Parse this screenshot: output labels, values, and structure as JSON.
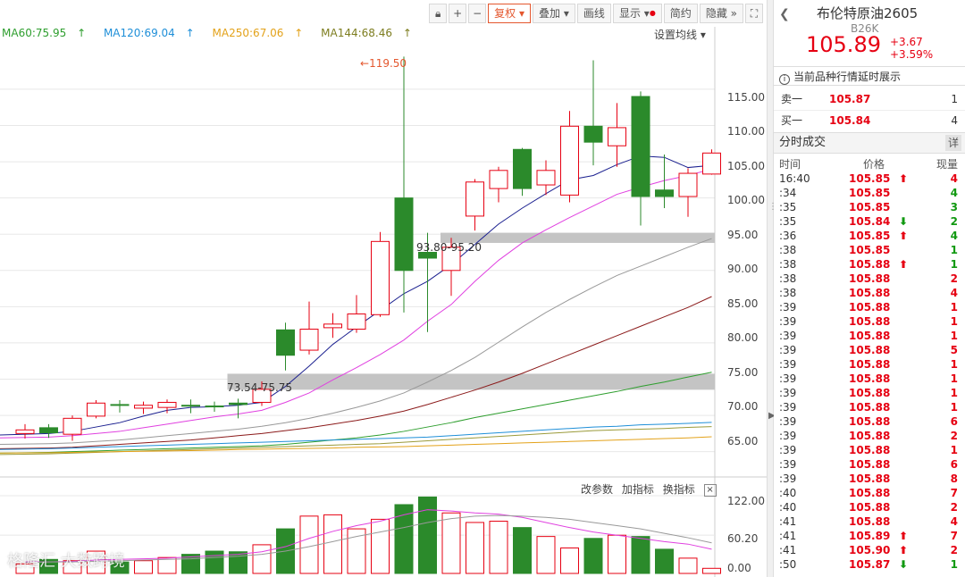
{
  "toolbar": {
    "lock_icon": "lock-icon",
    "zoom_in": "+",
    "zoom_out": "−",
    "fuquan": "复权",
    "diejia": "叠加",
    "huaxian": "画线",
    "xianshi": "显示",
    "jianyue": "简约",
    "yincang": "隐藏",
    "fullscreen_icon": "fullscreen-icon"
  },
  "ma_legend": [
    {
      "label": "MA60:75.95",
      "color": "#2e9e2e"
    },
    {
      "label": "MA120:69.04",
      "color": "#1f8fd8"
    },
    {
      "label": "MA250:67.06",
      "color": "#e3a21a"
    },
    {
      "label": "MA144:68.46",
      "color": "#9a9a3a"
    }
  ],
  "ma_setting": "设置均线 ▾",
  "annotations": {
    "high": "119.50",
    "zone1": "93.80-95.20",
    "zone2": "73.54-75.75"
  },
  "price_axis": [
    "115.00",
    "110.00",
    "105.00",
    "100.00",
    "95.00",
    "90.00",
    "85.00",
    "80.00",
    "75.00",
    "70.00",
    "65.00"
  ],
  "vol_axis": [
    "122.00",
    "60.20",
    "0.00"
  ],
  "indicator_bar": {
    "change_params": "改参数",
    "add_indicator": "加指标",
    "switch_indicator": "换指标",
    "close": "×"
  },
  "watermark": "格隆汇 大数跨境",
  "colors": {
    "up": "#e60012",
    "down": "#2b8a2b",
    "ma5": "#1a1f8f",
    "ma10": "#e040e0",
    "ma20": "#999999",
    "ma30": "#8b1a1a"
  },
  "chart_data": {
    "type": "candlestick",
    "ylim": [
      62,
      123
    ],
    "candles": [
      {
        "o": 67.5,
        "c": 68.0,
        "h": 68.8,
        "l": 66.8
      },
      {
        "o": 68.3,
        "c": 67.6,
        "h": 68.8,
        "l": 66.9
      },
      {
        "o": 67.4,
        "c": 69.6,
        "h": 70.0,
        "l": 66.5
      },
      {
        "o": 69.9,
        "c": 71.7,
        "h": 72.1,
        "l": 69.6
      },
      {
        "o": 71.5,
        "c": 71.4,
        "h": 72.1,
        "l": 70.4
      },
      {
        "o": 71.0,
        "c": 71.4,
        "h": 71.9,
        "l": 70.2
      },
      {
        "o": 71.1,
        "c": 71.8,
        "h": 72.2,
        "l": 70.3
      },
      {
        "o": 71.4,
        "c": 71.3,
        "h": 72.2,
        "l": 70.3
      },
      {
        "o": 71.3,
        "c": 71.2,
        "h": 71.9,
        "l": 70.5
      },
      {
        "o": 71.7,
        "c": 71.5,
        "h": 72.3,
        "l": 69.6
      },
      {
        "o": 71.8,
        "c": 73.6,
        "h": 74.7,
        "l": 71.3
      },
      {
        "o": 81.8,
        "c": 78.3,
        "h": 82.8,
        "l": 76.2
      },
      {
        "o": 79.0,
        "c": 81.9,
        "h": 85.7,
        "l": 78.4
      },
      {
        "o": 82.1,
        "c": 82.6,
        "h": 84.1,
        "l": 80.7
      },
      {
        "o": 81.9,
        "c": 84.0,
        "h": 86.6,
        "l": 81.4
      },
      {
        "o": 83.9,
        "c": 94.0,
        "h": 95.3,
        "l": 83.6
      },
      {
        "o": 100.0,
        "c": 90.0,
        "h": 119.5,
        "l": 84.2
      },
      {
        "o": 92.5,
        "c": 91.7,
        "h": 95.2,
        "l": 81.5
      },
      {
        "o": 90.0,
        "c": 93.2,
        "h": 94.5,
        "l": 86.5
      },
      {
        "o": 97.5,
        "c": 102.2,
        "h": 102.6,
        "l": 95.5
      },
      {
        "o": 101.3,
        "c": 103.8,
        "h": 104.3,
        "l": 99.4
      },
      {
        "o": 106.7,
        "c": 101.3,
        "h": 106.9,
        "l": 100.3
      },
      {
        "o": 101.8,
        "c": 103.8,
        "h": 105.2,
        "l": 100.4
      },
      {
        "o": 100.4,
        "c": 109.9,
        "h": 112.0,
        "l": 99.4
      },
      {
        "o": 109.9,
        "c": 107.7,
        "h": 119.0,
        "l": 104.5
      },
      {
        "o": 107.2,
        "c": 109.7,
        "h": 113.1,
        "l": 104.3
      },
      {
        "o": 114.0,
        "c": 100.2,
        "h": 114.7,
        "l": 96.2
      },
      {
        "o": 101.1,
        "c": 100.2,
        "h": 106.0,
        "l": 98.6
      },
      {
        "o": 100.2,
        "c": 103.4,
        "h": 104.1,
        "l": 97.4
      },
      {
        "o": 103.3,
        "c": 106.2,
        "h": 106.7,
        "l": 103.2
      }
    ],
    "volume_ylim": [
      0,
      122
    ],
    "volumes": [
      15,
      22,
      20,
      35,
      18,
      20,
      25,
      30,
      35,
      34,
      45,
      70,
      90,
      92,
      70,
      85,
      108,
      120,
      95,
      80,
      82,
      72,
      58,
      40,
      55,
      60,
      58,
      38,
      24,
      8
    ],
    "ma": {
      "ma5": [
        67.3,
        67.5,
        67.8,
        68.4,
        69.0,
        69.9,
        70.7,
        71.1,
        71.2,
        71.4,
        71.8,
        74.0,
        76.8,
        79.8,
        82.2,
        84.5,
        86.8,
        88.5,
        90.8,
        93.6,
        96.4,
        98.6,
        100.6,
        102.5,
        103.1,
        104.6,
        105.8,
        105.6,
        104.2,
        104.5
      ],
      "ma10": [
        66.9,
        67.0,
        67.2,
        67.5,
        67.8,
        68.3,
        68.8,
        69.3,
        69.8,
        70.2,
        70.7,
        71.8,
        73.1,
        74.9,
        76.6,
        78.4,
        80.4,
        83.0,
        85.3,
        88.5,
        91.4,
        93.8,
        95.6,
        97.3,
        98.9,
        100.5,
        101.5,
        102.4,
        103.1,
        104.0
      ],
      "ma20": [
        66.0,
        66.1,
        66.2,
        66.4,
        66.6,
        66.9,
        67.2,
        67.5,
        67.8,
        68.1,
        68.5,
        69.0,
        69.6,
        70.3,
        71.1,
        72.0,
        73.1,
        74.6,
        76.2,
        78.0,
        80.1,
        82.2,
        84.2,
        86.0,
        87.7,
        89.3,
        90.6,
        91.9,
        93.2,
        94.4
      ],
      "ma30": [
        65.4,
        65.5,
        65.6,
        65.8,
        66.0,
        66.2,
        66.4,
        66.6,
        66.9,
        67.2,
        67.5,
        67.9,
        68.3,
        68.8,
        69.3,
        69.9,
        70.6,
        71.5,
        72.5,
        73.5,
        74.6,
        75.8,
        77.1,
        78.4,
        79.7,
        81.0,
        82.3,
        83.6,
        84.9,
        86.4
      ],
      "ma60": [
        64.8,
        64.9,
        65.0,
        65.1,
        65.2,
        65.3,
        65.4,
        65.5,
        65.6,
        65.7,
        65.8,
        66.0,
        66.3,
        66.6,
        66.9,
        67.3,
        67.8,
        68.4,
        69.0,
        69.7,
        70.3,
        70.9,
        71.5,
        72.1,
        72.7,
        73.3,
        74.0,
        74.6,
        75.3,
        75.95
      ],
      "ma120": [
        65.3,
        65.4,
        65.5,
        65.6,
        65.7,
        65.8,
        65.9,
        66.0,
        66.1,
        66.2,
        66.3,
        66.4,
        66.5,
        66.6,
        66.7,
        66.8,
        66.9,
        67.0,
        67.2,
        67.4,
        67.6,
        67.8,
        68.0,
        68.2,
        68.4,
        68.5,
        68.7,
        68.8,
        68.9,
        69.04
      ],
      "ma144": [
        64.6,
        64.7,
        64.8,
        64.9,
        65.0,
        65.1,
        65.2,
        65.3,
        65.4,
        65.5,
        65.6,
        65.7,
        65.8,
        65.9,
        66.0,
        66.1,
        66.3,
        66.5,
        66.7,
        66.9,
        67.1,
        67.3,
        67.5,
        67.7,
        67.9,
        68.0,
        68.1,
        68.2,
        68.35,
        68.46
      ],
      "ma250": [
        64.8,
        64.85,
        64.9,
        64.95,
        65.0,
        65.05,
        65.1,
        65.15,
        65.2,
        65.3,
        65.35,
        65.4,
        65.45,
        65.5,
        65.6,
        65.65,
        65.7,
        65.8,
        65.9,
        66.0,
        66.1,
        66.2,
        66.3,
        66.4,
        66.5,
        66.6,
        66.7,
        66.8,
        66.9,
        67.06
      ]
    },
    "vol_ma5": [
      18,
      18,
      19,
      21,
      22,
      23,
      24,
      26,
      28,
      30,
      34,
      42,
      55,
      66,
      75,
      82,
      92,
      100,
      98,
      95,
      93,
      88,
      80,
      72,
      65,
      60,
      55,
      50,
      46,
      38
    ],
    "vol_ma10": [
      17,
      18,
      18,
      19,
      20,
      21,
      22,
      23,
      25,
      27,
      30,
      35,
      42,
      50,
      58,
      65,
      72,
      80,
      86,
      90,
      91,
      90,
      88,
      85,
      80,
      75,
      70,
      63,
      56,
      48
    ],
    "zones": [
      {
        "label": "93.80-95.20",
        "low": 93.8,
        "high": 95.2,
        "from_index": 18
      },
      {
        "label": "73.54-75.75",
        "low": 73.54,
        "high": 75.75,
        "from_index": 9
      }
    ]
  },
  "side": {
    "back_icon": "back-arrow-icon",
    "title": "布伦特原油2605",
    "code": "B26K",
    "price": "105.89",
    "change": "+3.67",
    "change_pct": "+3.59%",
    "notice": "当前品种行情延时展示",
    "ask_label": "卖一",
    "ask_price": "105.87",
    "ask_vol": "1",
    "bid_label": "买一",
    "bid_price": "105.84",
    "bid_vol": "4",
    "trades_title": "分时成交",
    "detail_btn": "详",
    "col_time": "时间",
    "col_price": "价格",
    "col_vol": "现量",
    "trades": [
      {
        "t": "16:40",
        "p": "105.85",
        "a": "⬆",
        "d": "up",
        "v": "4"
      },
      {
        "t": ":34",
        "p": "105.85",
        "a": "",
        "d": "down",
        "v": "4"
      },
      {
        "t": ":35",
        "p": "105.85",
        "a": "",
        "d": "down",
        "v": "3"
      },
      {
        "t": ":35",
        "p": "105.84",
        "a": "⬇",
        "d": "down",
        "v": "2"
      },
      {
        "t": ":36",
        "p": "105.85",
        "a": "⬆",
        "d": "down",
        "v": "4"
      },
      {
        "t": ":38",
        "p": "105.85",
        "a": "",
        "d": "down",
        "v": "1"
      },
      {
        "t": ":38",
        "p": "105.88",
        "a": "⬆",
        "d": "down",
        "v": "1"
      },
      {
        "t": ":38",
        "p": "105.88",
        "a": "",
        "d": "up",
        "v": "2"
      },
      {
        "t": ":38",
        "p": "105.88",
        "a": "",
        "d": "up",
        "v": "4"
      },
      {
        "t": ":39",
        "p": "105.88",
        "a": "",
        "d": "up",
        "v": "1"
      },
      {
        "t": ":39",
        "p": "105.88",
        "a": "",
        "d": "up",
        "v": "1"
      },
      {
        "t": ":39",
        "p": "105.88",
        "a": "",
        "d": "up",
        "v": "1"
      },
      {
        "t": ":39",
        "p": "105.88",
        "a": "",
        "d": "up",
        "v": "5"
      },
      {
        "t": ":39",
        "p": "105.88",
        "a": "",
        "d": "up",
        "v": "1"
      },
      {
        "t": ":39",
        "p": "105.88",
        "a": "",
        "d": "up",
        "v": "1"
      },
      {
        "t": ":39",
        "p": "105.88",
        "a": "",
        "d": "up",
        "v": "1"
      },
      {
        "t": ":39",
        "p": "105.88",
        "a": "",
        "d": "up",
        "v": "1"
      },
      {
        "t": ":39",
        "p": "105.88",
        "a": "",
        "d": "up",
        "v": "6"
      },
      {
        "t": ":39",
        "p": "105.88",
        "a": "",
        "d": "up",
        "v": "2"
      },
      {
        "t": ":39",
        "p": "105.88",
        "a": "",
        "d": "up",
        "v": "1"
      },
      {
        "t": ":39",
        "p": "105.88",
        "a": "",
        "d": "up",
        "v": "6"
      },
      {
        "t": ":39",
        "p": "105.88",
        "a": "",
        "d": "up",
        "v": "8"
      },
      {
        "t": ":40",
        "p": "105.88",
        "a": "",
        "d": "up",
        "v": "7"
      },
      {
        "t": ":40",
        "p": "105.88",
        "a": "",
        "d": "up",
        "v": "2"
      },
      {
        "t": ":41",
        "p": "105.88",
        "a": "",
        "d": "up",
        "v": "4"
      },
      {
        "t": ":41",
        "p": "105.89",
        "a": "⬆",
        "d": "up",
        "v": "7"
      },
      {
        "t": ":41",
        "p": "105.90",
        "a": "⬆",
        "d": "up",
        "v": "2"
      },
      {
        "t": ":50",
        "p": "105.87",
        "a": "⬇",
        "d": "down",
        "v": "1"
      }
    ]
  }
}
